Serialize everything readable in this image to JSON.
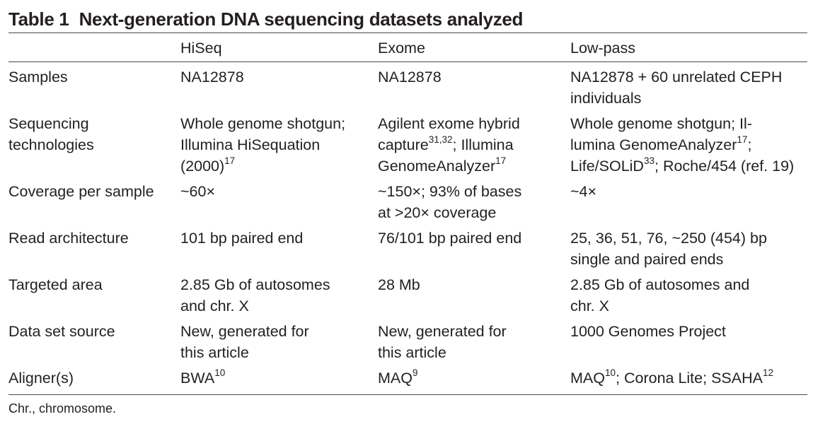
{
  "table": {
    "label": "Table 1",
    "title": "Next-generation DNA sequencing datasets analyzed",
    "columns": [
      "",
      "HiSeq",
      "Exome",
      "Low-pass"
    ],
    "rows": [
      {
        "label": "Samples",
        "cells": [
          {
            "segments": [
              {
                "text": "NA12878"
              }
            ]
          },
          {
            "segments": [
              {
                "text": "NA12878"
              }
            ]
          },
          {
            "segments": [
              {
                "text": "NA12878 + 60 unrelated CEPH\nindividuals"
              }
            ]
          }
        ]
      },
      {
        "label": "Sequencing\ntechnologies",
        "cells": [
          {
            "segments": [
              {
                "text": "Whole genome shotgun;\nIllumina HiSequation\n(2000)"
              },
              {
                "text": "17",
                "sup": true
              }
            ]
          },
          {
            "segments": [
              {
                "text": "Agilent exome hybrid\ncapture"
              },
              {
                "text": "31,32",
                "sup": true
              },
              {
                "text": "; Illumina\nGenomeAnalyzer"
              },
              {
                "text": "17",
                "sup": true
              }
            ]
          },
          {
            "segments": [
              {
                "text": "Whole genome shotgun; Il-\nlumina GenomeAnalyzer"
              },
              {
                "text": "17",
                "sup": true
              },
              {
                "text": ";\nLife/SOLiD"
              },
              {
                "text": "33",
                "sup": true
              },
              {
                "text": "; Roche/454 (ref. 19)"
              }
            ]
          }
        ]
      },
      {
        "label": "Coverage per sample",
        "cells": [
          {
            "segments": [
              {
                "text": "~60×"
              }
            ]
          },
          {
            "segments": [
              {
                "text": "~150×; 93% of bases\nat >20× coverage"
              }
            ]
          },
          {
            "segments": [
              {
                "text": "~4×"
              }
            ]
          }
        ]
      },
      {
        "label": "Read architecture",
        "cells": [
          {
            "segments": [
              {
                "text": "101 bp paired end"
              }
            ]
          },
          {
            "segments": [
              {
                "text": "76/101 bp paired end"
              }
            ]
          },
          {
            "segments": [
              {
                "text": "25, 36, 51, 76, ~250 (454) bp\nsingle and paired ends"
              }
            ]
          }
        ]
      },
      {
        "label": "Targeted area",
        "cells": [
          {
            "segments": [
              {
                "text": "2.85 Gb of autosomes\nand chr. X"
              }
            ]
          },
          {
            "segments": [
              {
                "text": "28 Mb"
              }
            ]
          },
          {
            "segments": [
              {
                "text": "2.85 Gb of autosomes and\nchr. X"
              }
            ]
          }
        ]
      },
      {
        "label": "Data set source",
        "cells": [
          {
            "segments": [
              {
                "text": "New, generated for\nthis article"
              }
            ]
          },
          {
            "segments": [
              {
                "text": "New, generated for\nthis article"
              }
            ]
          },
          {
            "segments": [
              {
                "text": "1000 Genomes Project"
              }
            ]
          }
        ]
      },
      {
        "label": "Aligner(s)",
        "cells": [
          {
            "segments": [
              {
                "text": "BWA"
              },
              {
                "text": "10",
                "sup": true
              }
            ]
          },
          {
            "segments": [
              {
                "text": "MAQ"
              },
              {
                "text": "9",
                "sup": true
              }
            ]
          },
          {
            "segments": [
              {
                "text": "MAQ"
              },
              {
                "text": "10",
                "sup": true
              },
              {
                "text": "; Corona Lite; SSAHA"
              },
              {
                "text": "12",
                "sup": true
              }
            ]
          }
        ]
      }
    ],
    "footnote": "Chr., chromosome."
  }
}
